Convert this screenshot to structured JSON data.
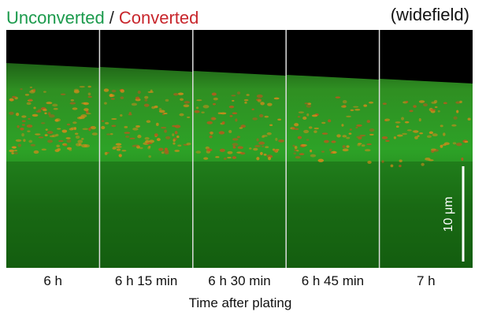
{
  "header": {
    "unconverted": "Unconverted",
    "separator": "/",
    "converted": "Converted",
    "mode": "(widefield)"
  },
  "panels": [
    "6 h",
    "6 h 15 min",
    "6 h 30 min",
    "6 h 45 min",
    "7 h"
  ],
  "scale_bar": "10 μm",
  "x_title": "Time after plating"
}
